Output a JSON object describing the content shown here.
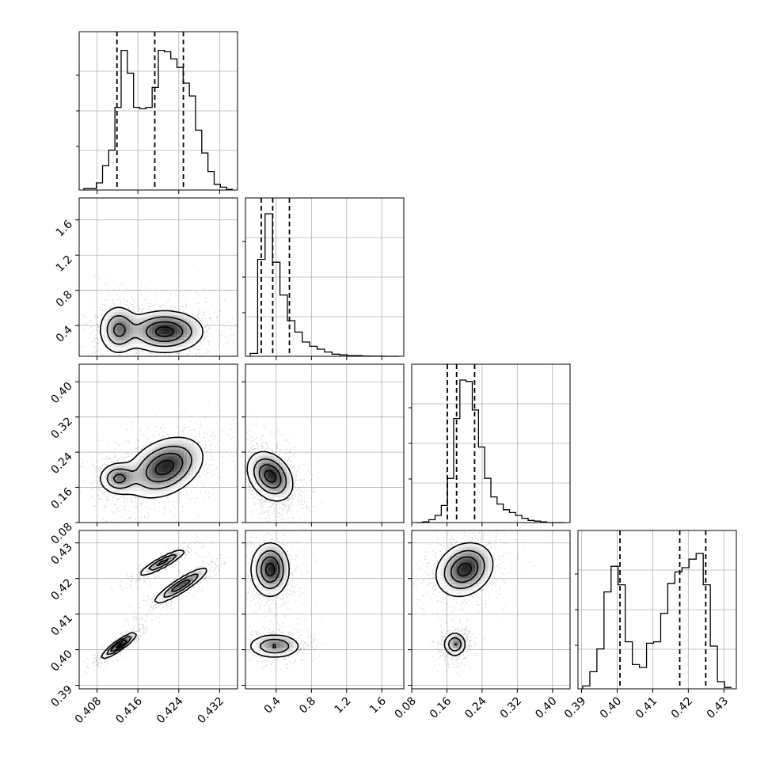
{
  "chart_data": {
    "type": "corner",
    "title": "",
    "parameters": [
      {
        "range": [
          0.4045,
          0.4355
        ],
        "ticks": [
          "0.408",
          "0.416",
          "0.424",
          "0.432"
        ],
        "tick_values": [
          0.408,
          0.416,
          0.424,
          0.432
        ],
        "axis_label": ""
      },
      {
        "range": [
          0.05,
          1.85
        ],
        "ticks": [
          "0.4",
          "0.8",
          "1.2",
          "1.6"
        ],
        "tick_values": [
          0.4,
          0.8,
          1.2,
          1.6
        ],
        "axis_label": ""
      },
      {
        "range": [
          0.08,
          0.44
        ],
        "ticks": [
          "0.08",
          "0.16",
          "0.24",
          "0.32",
          "0.40"
        ],
        "tick_values": [
          0.08,
          0.16,
          0.24,
          0.32,
          0.4
        ],
        "axis_label": ""
      },
      {
        "range": [
          0.389,
          0.4335
        ],
        "ticks": [
          "0.39",
          "0.40",
          "0.41",
          "0.42",
          "0.43"
        ],
        "tick_values": [
          0.39,
          0.4,
          0.41,
          0.42,
          0.43
        ],
        "axis_label": ""
      }
    ],
    "histograms": [
      {
        "counts": [
          0.01,
          0.01,
          0.05,
          0.17,
          0.28,
          0.58,
          0.98,
          0.82,
          0.58,
          0.57,
          0.58,
          0.72,
          0.98,
          0.97,
          0.92,
          0.86,
          0.75,
          0.66,
          0.42,
          0.26,
          0.13,
          0.04,
          0.02,
          0.005
        ],
        "quantiles": [
          0.4119,
          0.4193,
          0.4249
        ]
      },
      {
        "counts": [
          0.02,
          0.68,
          1.0,
          0.66,
          0.43,
          0.25,
          0.17,
          0.1,
          0.07,
          0.05,
          0.03,
          0.015,
          0.01,
          0.005,
          0.005,
          0.002,
          0.001,
          0.001,
          0.0,
          0.0
        ],
        "quantiles": [
          0.23,
          0.36,
          0.55
        ]
      },
      {
        "counts": [
          0.0,
          0.005,
          0.02,
          0.05,
          0.12,
          0.31,
          0.73,
          1.0,
          0.99,
          0.79,
          0.53,
          0.31,
          0.18,
          0.13,
          0.09,
          0.07,
          0.05,
          0.03,
          0.015,
          0.01,
          0.005,
          0.0,
          0.0,
          0.0
        ],
        "quantiles": [
          0.161,
          0.182,
          0.223
        ]
      },
      {
        "counts": [
          0.02,
          0.12,
          0.28,
          0.68,
          0.86,
          0.73,
          0.33,
          0.17,
          0.15,
          0.32,
          0.33,
          0.53,
          0.74,
          0.82,
          0.85,
          0.91,
          0.95,
          0.73,
          0.3,
          0.05,
          0.01
        ],
        "quantiles": [
          0.4008,
          0.4176,
          0.4249
        ]
      }
    ],
    "joint_modes": [
      {
        "pair": [
          0,
          1
        ],
        "modes": [
          {
            "x": 0.4122,
            "y": 0.35,
            "sx": 0.0018,
            "sy": 0.13,
            "rho": 0.0,
            "w": 1.0
          },
          {
            "x": 0.4212,
            "y": 0.33,
            "sx": 0.0035,
            "sy": 0.11,
            "rho": 0.0,
            "w": 1.5
          }
        ]
      },
      {
        "pair": [
          0,
          2
        ],
        "modes": [
          {
            "x": 0.4122,
            "y": 0.18,
            "sx": 0.0018,
            "sy": 0.017,
            "rho": 0.0,
            "w": 1.0
          },
          {
            "x": 0.4212,
            "y": 0.205,
            "sx": 0.0035,
            "sy": 0.032,
            "rho": 0.35,
            "w": 1.5
          }
        ]
      },
      {
        "pair": [
          0,
          3
        ],
        "modes": [
          {
            "x": 0.4123,
            "y": 0.4012,
            "sx": 0.0016,
            "sy": 0.0017,
            "rho": 0.9,
            "w": 1.0
          },
          {
            "x": 0.4208,
            "y": 0.4245,
            "sx": 0.0022,
            "sy": 0.0018,
            "rho": 0.9,
            "w": 0.7
          },
          {
            "x": 0.4244,
            "y": 0.418,
            "sx": 0.0025,
            "sy": 0.0024,
            "rho": 0.9,
            "w": 0.8
          }
        ]
      },
      {
        "pair": [
          1,
          2
        ],
        "modes": [
          {
            "x": 0.33,
            "y": 0.185,
            "sx": 0.12,
            "sy": 0.026,
            "rho": -0.3,
            "w": 1.0
          }
        ]
      },
      {
        "pair": [
          1,
          3
        ],
        "modes": [
          {
            "x": 0.33,
            "y": 0.4225,
            "sx": 0.1,
            "sy": 0.0035,
            "rho": 0.0,
            "w": 1.6
          },
          {
            "x": 0.38,
            "y": 0.401,
            "sx": 0.14,
            "sy": 0.0016,
            "rho": 0.0,
            "w": 1.0
          }
        ]
      },
      {
        "pair": [
          2,
          3
        ],
        "modes": [
          {
            "x": 0.2,
            "y": 0.4225,
            "sx": 0.03,
            "sy": 0.0035,
            "rho": 0.2,
            "w": 1.6
          },
          {
            "x": 0.178,
            "y": 0.4015,
            "sx": 0.012,
            "sy": 0.0016,
            "rho": 0.0,
            "w": 1.0
          }
        ]
      }
    ],
    "contour_levels": [
      0.88,
      0.6,
      0.32,
      0.1
    ],
    "grid": true,
    "colors": {
      "line": "#000000",
      "grid": "#b0b0b0",
      "points": "#000000",
      "density": "#000000"
    }
  }
}
